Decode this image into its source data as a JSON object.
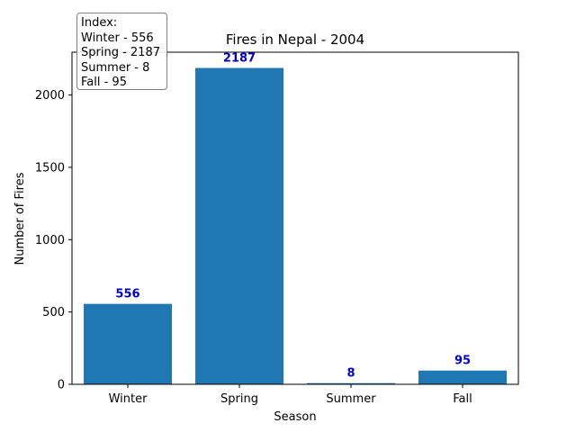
{
  "chart_data": {
    "type": "bar",
    "title": "Fires in Nepal - 2004",
    "xlabel": "Season",
    "ylabel": "Number of Fires",
    "categories": [
      "Winter",
      "Spring",
      "Summer",
      "Fall"
    ],
    "values": [
      556,
      2187,
      8,
      95
    ],
    "data_labels": [
      "556",
      "2187",
      "8",
      "95"
    ],
    "ylim": [
      0,
      2296
    ],
    "yticks": [
      0,
      500,
      1000,
      1500,
      2000
    ],
    "grid": false,
    "bar_color": "#1f77b4",
    "data_label_color": "#0000cc",
    "annotation": {
      "placement": "top-left",
      "lines": [
        "Index:",
        "Winter - 556",
        "Spring - 2187",
        "Summer - 8",
        "Fall - 95"
      ]
    }
  }
}
